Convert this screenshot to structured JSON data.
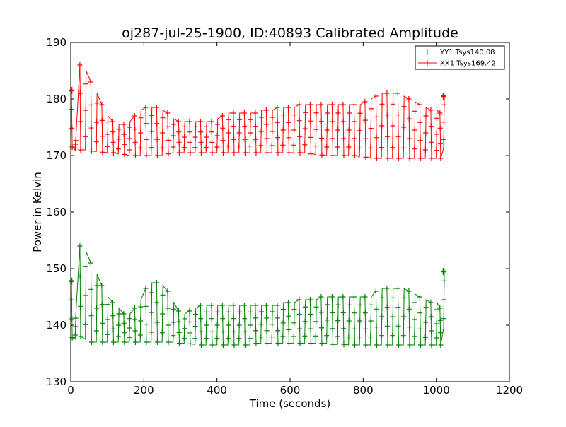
{
  "chart_data": {
    "type": "line",
    "title": "oj287-jul-25-1900, ID:40893 Calibrated Amplitude",
    "xlabel": "Time (seconds)",
    "ylabel": "Power in Kelvin",
    "xlim": [
      0,
      1200
    ],
    "ylim": [
      130,
      190
    ],
    "xticks": [
      0,
      200,
      400,
      600,
      800,
      1000,
      1200
    ],
    "yticks": [
      130,
      140,
      150,
      160,
      170,
      180,
      190
    ],
    "grid": false,
    "legend_position": "top-right",
    "marker": "+",
    "series": [
      {
        "name": "YY1 Tsys140.08",
        "color": "#008000",
        "t": [
          2,
          12,
          25,
          40,
          55,
          70,
          85,
          100,
          115,
          130,
          145,
          160,
          175,
          190,
          205,
          220,
          235,
          250,
          265,
          280,
          295,
          310,
          325,
          340,
          355,
          370,
          385,
          400,
          415,
          430,
          445,
          460,
          475,
          490,
          505,
          520,
          535,
          550,
          565,
          580,
          595,
          610,
          625,
          640,
          655,
          670,
          685,
          700,
          715,
          730,
          745,
          760,
          775,
          790,
          805,
          820,
          835,
          850,
          865,
          880,
          895,
          910,
          925,
          940,
          955,
          970,
          985,
          1000,
          1010,
          1020
        ],
        "hi": [
          147.8,
          142,
          154,
          153,
          151,
          149,
          147,
          145,
          144,
          143,
          142,
          142,
          143,
          144.5,
          146.5,
          147.5,
          147.5,
          147,
          146,
          144,
          142.5,
          142,
          142.5,
          143,
          143.5,
          143.5,
          143.5,
          143.5,
          143.5,
          143.5,
          143.5,
          143.5,
          143.5,
          143.5,
          143.5,
          143.5,
          143.5,
          143.5,
          143.5,
          144,
          144,
          144,
          144.5,
          144.5,
          144.5,
          144.5,
          145,
          145,
          145,
          145,
          145,
          145,
          145,
          145,
          145,
          145,
          146,
          146.5,
          146.5,
          146.5,
          146.5,
          146.5,
          146,
          145.5,
          145,
          144.5,
          144,
          144,
          143,
          149.5
        ],
        "lo": [
          137.8,
          137.5,
          138,
          137.5,
          137,
          137,
          137,
          137,
          137,
          137,
          137,
          137,
          137,
          137,
          137,
          137,
          137,
          137,
          137,
          137,
          136.8,
          136.8,
          136.7,
          136.6,
          136.5,
          136.5,
          136.5,
          136.5,
          136.5,
          136.5,
          136.5,
          136.5,
          136.5,
          136.5,
          136.8,
          136.8,
          136.8,
          136.8,
          136.8,
          136.8,
          136.8,
          136.8,
          136.8,
          136.8,
          136.8,
          136.8,
          136.8,
          136.8,
          136.6,
          136.6,
          136.6,
          136.5,
          136.5,
          136.5,
          136.5,
          136.5,
          136.5,
          136.5,
          136.5,
          136.5,
          136.5,
          136.5,
          136.5,
          136.5,
          136.5,
          136.5,
          136.5,
          136.5,
          136.5,
          139.5
        ]
      },
      {
        "name": "XX1 Tsys169.42",
        "color": "#ff0000",
        "t": [
          2,
          12,
          25,
          40,
          55,
          70,
          85,
          100,
          115,
          130,
          145,
          160,
          175,
          190,
          205,
          220,
          235,
          250,
          265,
          280,
          295,
          310,
          325,
          340,
          355,
          370,
          385,
          400,
          415,
          430,
          445,
          460,
          475,
          490,
          505,
          520,
          535,
          550,
          565,
          580,
          595,
          610,
          625,
          640,
          655,
          670,
          685,
          700,
          715,
          730,
          745,
          760,
          775,
          790,
          805,
          820,
          835,
          850,
          865,
          880,
          895,
          910,
          925,
          940,
          955,
          970,
          985,
          1000,
          1010,
          1020
        ],
        "hi": [
          181.5,
          173,
          186,
          185,
          183,
          181,
          179,
          177,
          176,
          175.5,
          175.5,
          176,
          177,
          178,
          178.5,
          178.5,
          178.5,
          178,
          177.5,
          176.5,
          176,
          176,
          176,
          176,
          176,
          176,
          176,
          176.5,
          177,
          177.5,
          177.5,
          177.5,
          177.5,
          177.5,
          177.5,
          178,
          178,
          178,
          178.5,
          178.5,
          178.5,
          178.5,
          179,
          179,
          179,
          179,
          179,
          179,
          179,
          179,
          179,
          179,
          179,
          179,
          179.5,
          180,
          180.5,
          181,
          181,
          181,
          181,
          180.5,
          180,
          179.5,
          179,
          178.5,
          178,
          178,
          177.5,
          180.5
        ],
        "lo": [
          171.5,
          171,
          171,
          171,
          170.8,
          170.7,
          170.6,
          170.5,
          170.5,
          170.3,
          170.2,
          170,
          170,
          170,
          170,
          170,
          170,
          170,
          170.3,
          170.5,
          170.5,
          170.5,
          170.5,
          170.5,
          170.5,
          170.5,
          170.5,
          170.5,
          170.5,
          170.5,
          170.5,
          170.5,
          170.5,
          170.5,
          170.5,
          170.5,
          170.5,
          170.5,
          170.5,
          170.5,
          170.5,
          170.5,
          170.5,
          170.5,
          170.3,
          170.2,
          170.1,
          170,
          170,
          170,
          170,
          170,
          170,
          169.8,
          169.7,
          169.6,
          169.5,
          169.5,
          169.5,
          169.5,
          169.5,
          169.5,
          169.5,
          169.5,
          169.5,
          169.5,
          169.5,
          169.5,
          169.5,
          171.3
        ]
      }
    ]
  }
}
